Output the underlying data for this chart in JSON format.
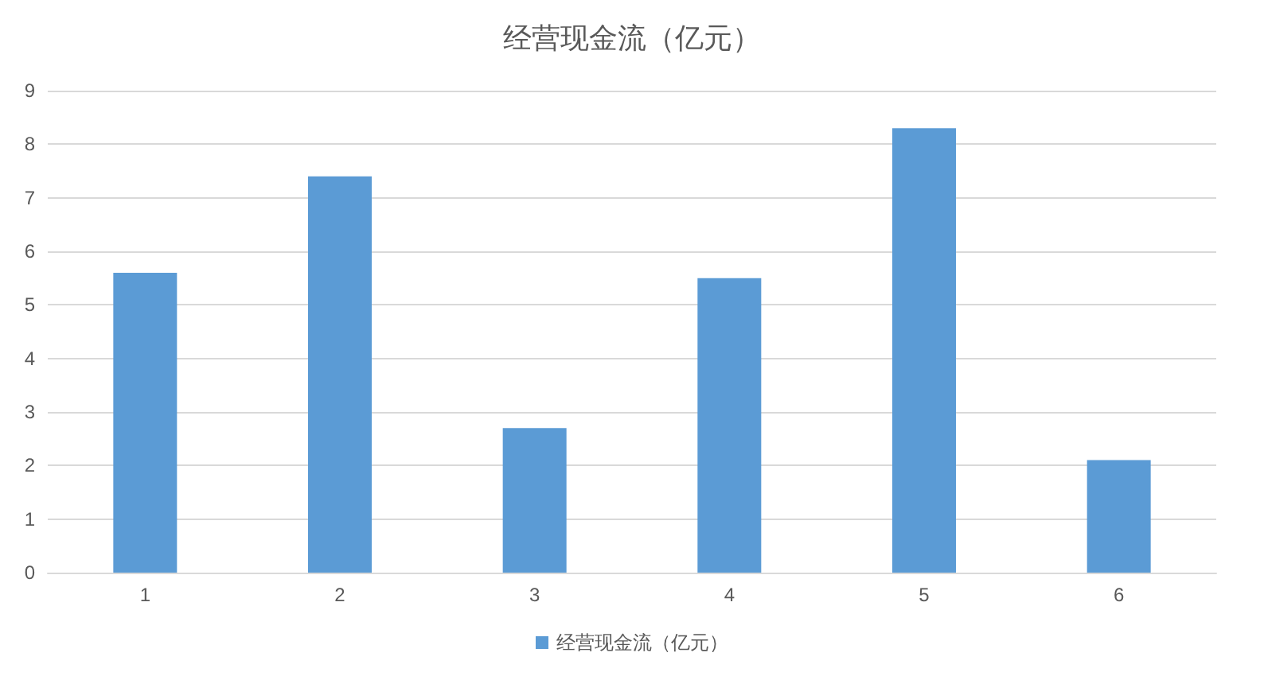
{
  "chart_data": {
    "type": "bar",
    "title": "经营现金流（亿元）",
    "categories": [
      "1",
      "2",
      "3",
      "4",
      "5",
      "6"
    ],
    "series": [
      {
        "name": "经营现金流（亿元）",
        "color": "#5b9bd5",
        "values": [
          5.6,
          7.4,
          2.7,
          5.5,
          8.3,
          2.1
        ]
      }
    ],
    "ylim": [
      0,
      9
    ],
    "yticks": [
      0,
      1,
      2,
      3,
      4,
      5,
      6,
      7,
      8,
      9
    ],
    "grid": "y",
    "legend": "bottom"
  }
}
